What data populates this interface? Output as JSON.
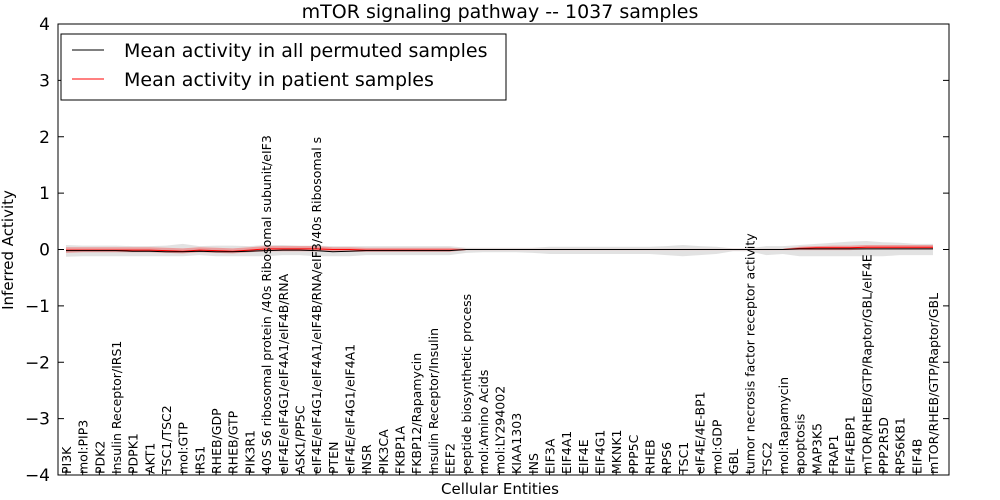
{
  "chart_data": {
    "type": "line",
    "title": "mTOR signaling pathway -- 1037 samples",
    "xlabel": "Cellular Entities",
    "ylabel": "Inferred Activity",
    "ylim": [
      -4,
      4
    ],
    "yticks": [
      -4,
      -3,
      -2,
      -1,
      0,
      1,
      2,
      3,
      4
    ],
    "ytick_labels": [
      "−4",
      "−3",
      "−2",
      "−1",
      "0",
      "1",
      "2",
      "3",
      "4"
    ],
    "legend_position": "top-left",
    "categories": [
      "PI3K",
      "mol:PIP3",
      "PDK2",
      "Insulin Receptor/IRS1",
      "PDPK1",
      "AKT1",
      "TSC1/TSC2",
      "mol:GTP",
      "IRS1",
      "RHEB/GDP",
      "RHEB/GTP",
      "PIK3R1",
      "40S S6 ribosomal protein /40s Ribosomal subunit/eIF3",
      "eIF4E/eIF4G1/eIF4A1/eIF4B/RNA",
      "ASK1/PP5C",
      "eIF4E/eIF4G1/eIF4A1/eIF4B/RNA/eIF3/40s Ribosomal s",
      "PTEN",
      "eIF4E/eIF4G1/eIF4A1",
      "INSR",
      "PIK3CA",
      "FKBP1A",
      "FKBP12/Rapamycin",
      "Insulin Receptor/Insulin",
      "EEF2",
      "peptide biosynthetic process",
      "mol:Amino Acids",
      "mol:LY294002",
      "KIAA1303",
      "INS",
      "EIF3A",
      "EIF4A1",
      "EIF4E",
      "EIF4G1",
      "MKNK1",
      "PPP5C",
      "RHEB",
      "RPS6",
      "TSC1",
      "eIF4E/4E-BP1",
      "mol:GDP",
      "GBL",
      "tumor necrosis factor receptor activity",
      "TSC2",
      "mol:Rapamycin",
      "apoptosis",
      "MAP3K5",
      "FRAP1",
      "EIF4EBP1",
      "mTOR/RHEB/GTP/Raptor/GBL/eIF4E",
      "PPP2R5D",
      "RPS6KB1",
      "EIF4B",
      "mTOR/RHEB/GTP/Raptor/GBL"
    ],
    "series": [
      {
        "name": "Mean activity in all permuted samples",
        "color": "#000000",
        "values": [
          -0.02,
          -0.02,
          -0.02,
          -0.02,
          -0.03,
          -0.03,
          -0.04,
          -0.04,
          -0.03,
          -0.04,
          -0.04,
          -0.03,
          -0.02,
          -0.01,
          -0.01,
          -0.02,
          -0.04,
          -0.03,
          -0.02,
          -0.02,
          -0.02,
          -0.02,
          -0.02,
          -0.02,
          0,
          0,
          0,
          0,
          0,
          0,
          0,
          0,
          0,
          0,
          0,
          0,
          0,
          0,
          0,
          0,
          0,
          0,
          0,
          0,
          0.01,
          0.01,
          0.01,
          0.01,
          0.01,
          0.01,
          0.01,
          0.01,
          0.01
        ],
        "band_low": [
          -0.13,
          -0.12,
          -0.12,
          -0.12,
          -0.12,
          -0.12,
          -0.12,
          -0.12,
          -0.1,
          -0.12,
          -0.12,
          -0.12,
          -0.12,
          -0.1,
          -0.1,
          -0.12,
          -0.12,
          -0.12,
          -0.1,
          -0.1,
          -0.1,
          -0.1,
          -0.1,
          -0.1,
          -0.06,
          -0.05,
          -0.05,
          -0.05,
          -0.06,
          -0.08,
          -0.08,
          -0.08,
          -0.08,
          -0.08,
          -0.08,
          -0.08,
          -0.1,
          -0.12,
          -0.1,
          -0.08,
          -0.03,
          -0.03,
          -0.1,
          -0.08,
          -0.12,
          -0.12,
          -0.12,
          -0.12,
          -0.12,
          -0.12,
          -0.1,
          -0.1,
          -0.1
        ],
        "band_high": [
          0.08,
          0.07,
          0.07,
          0.07,
          0.06,
          0.06,
          0.07,
          0.1,
          0.06,
          0.07,
          0.07,
          0.06,
          0.08,
          0.08,
          0.07,
          0.07,
          0.06,
          0.06,
          0.06,
          0.06,
          0.06,
          0.06,
          0.06,
          0.06,
          0.03,
          0.03,
          0.03,
          0.03,
          0.03,
          0.05,
          0.05,
          0.05,
          0.05,
          0.05,
          0.05,
          0.05,
          0.06,
          0.08,
          0.06,
          0.05,
          0.02,
          0.02,
          0.06,
          0.06,
          0.08,
          0.1,
          0.12,
          0.14,
          0.15,
          0.13,
          0.12,
          0.1,
          0.1
        ]
      },
      {
        "name": "Mean activity in patient samples",
        "color": "#ff0000",
        "values": [
          -0.01,
          -0.01,
          -0.01,
          -0.01,
          -0.01,
          -0.01,
          -0.02,
          -0.03,
          -0.01,
          -0.02,
          -0.03,
          -0.01,
          0.01,
          0.01,
          0.01,
          0.01,
          0,
          0,
          -0.01,
          -0.01,
          -0.01,
          -0.01,
          -0.01,
          -0.01,
          0,
          0,
          0,
          0,
          0,
          0,
          0,
          0,
          0,
          0,
          0,
          0,
          0,
          0,
          0,
          0,
          0,
          0,
          0,
          0,
          0.02,
          0.03,
          0.03,
          0.03,
          0.04,
          0.04,
          0.04,
          0.04,
          0.04
        ],
        "band_low": [
          -0.06,
          -0.05,
          -0.05,
          -0.05,
          -0.05,
          -0.05,
          -0.06,
          -0.07,
          -0.05,
          -0.06,
          -0.07,
          -0.05,
          -0.03,
          -0.03,
          -0.03,
          -0.03,
          -0.04,
          -0.04,
          -0.04,
          -0.04,
          -0.04,
          -0.04,
          -0.04,
          -0.04,
          -0.01,
          -0.01,
          -0.01,
          -0.01,
          -0.01,
          -0.01,
          -0.01,
          -0.01,
          -0.01,
          -0.01,
          -0.01,
          -0.01,
          -0.01,
          -0.01,
          -0.01,
          -0.01,
          -0.01,
          -0.01,
          -0.01,
          -0.01,
          -0.01,
          -0.01,
          -0.01,
          -0.01,
          0,
          0,
          0,
          0,
          0
        ],
        "band_high": [
          0.04,
          0.04,
          0.04,
          0.04,
          0.04,
          0.04,
          0.03,
          0.02,
          0.04,
          0.03,
          0.02,
          0.04,
          0.06,
          0.06,
          0.06,
          0.06,
          0.04,
          0.04,
          0.03,
          0.03,
          0.03,
          0.03,
          0.03,
          0.03,
          0.01,
          0.01,
          0.01,
          0.01,
          0.01,
          0.01,
          0.01,
          0.01,
          0.01,
          0.01,
          0.01,
          0.01,
          0.01,
          0.01,
          0.01,
          0.01,
          0.01,
          0.01,
          0.01,
          0.01,
          0.05,
          0.06,
          0.07,
          0.07,
          0.08,
          0.08,
          0.08,
          0.08,
          0.08
        ]
      }
    ]
  }
}
